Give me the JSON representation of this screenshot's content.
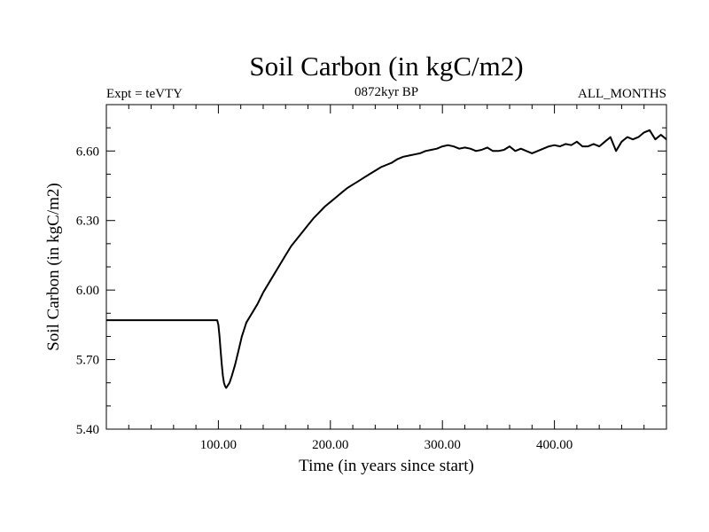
{
  "chart_data": {
    "type": "line",
    "title": "Soil Carbon (in kgC/m2)",
    "subtitle_left": "Expt = teVTY",
    "subtitle_center": "0872kyr BP",
    "subtitle_right": "ALL_MONTHS",
    "xlabel": "Time (in years since start)",
    "ylabel": "Soil Carbon (in kgC/m2)",
    "xlim": [
      0,
      500
    ],
    "ylim": [
      5.4,
      6.8
    ],
    "x_ticks": [
      100,
      200,
      300,
      400
    ],
    "x_tick_labels": [
      "100.00",
      "200.00",
      "300.00",
      "400.00"
    ],
    "y_ticks": [
      5.4,
      5.7,
      6.0,
      6.3,
      6.6
    ],
    "y_tick_labels": [
      "5.40",
      "5.70",
      "6.00",
      "6.30",
      "6.60"
    ],
    "line_color": "#000000",
    "series": [
      {
        "name": "Soil Carbon",
        "x": [
          0,
          99,
          100,
          101,
          102,
          103,
          104,
          105,
          106,
          107,
          108,
          110,
          112,
          115,
          118,
          121,
          125,
          130,
          135,
          140,
          145,
          150,
          155,
          160,
          165,
          170,
          175,
          180,
          185,
          190,
          195,
          200,
          205,
          210,
          215,
          220,
          225,
          230,
          235,
          240,
          245,
          250,
          255,
          260,
          265,
          270,
          275,
          280,
          285,
          290,
          295,
          300,
          305,
          310,
          315,
          320,
          325,
          330,
          335,
          340,
          345,
          350,
          355,
          360,
          365,
          370,
          375,
          380,
          385,
          390,
          395,
          400,
          405,
          410,
          415,
          420,
          425,
          430,
          435,
          440,
          445,
          450,
          455,
          460,
          465,
          470,
          475,
          480,
          485,
          490,
          495,
          500
        ],
        "y": [
          5.87,
          5.87,
          5.85,
          5.8,
          5.74,
          5.68,
          5.63,
          5.6,
          5.585,
          5.578,
          5.585,
          5.6,
          5.63,
          5.68,
          5.74,
          5.8,
          5.86,
          5.9,
          5.94,
          5.99,
          6.03,
          6.07,
          6.11,
          6.15,
          6.19,
          6.22,
          6.25,
          6.28,
          6.31,
          6.335,
          6.36,
          6.38,
          6.4,
          6.42,
          6.44,
          6.455,
          6.47,
          6.485,
          6.5,
          6.515,
          6.53,
          6.54,
          6.55,
          6.565,
          6.575,
          6.58,
          6.585,
          6.59,
          6.6,
          6.605,
          6.61,
          6.62,
          6.625,
          6.62,
          6.61,
          6.615,
          6.61,
          6.6,
          6.605,
          6.615,
          6.6,
          6.6,
          6.605,
          6.62,
          6.6,
          6.61,
          6.6,
          6.59,
          6.6,
          6.61,
          6.62,
          6.625,
          6.62,
          6.63,
          6.625,
          6.64,
          6.62,
          6.62,
          6.63,
          6.62,
          6.64,
          6.66,
          6.6,
          6.64,
          6.66,
          6.65,
          6.66,
          6.68,
          6.69,
          6.65,
          6.67,
          6.65
        ]
      }
    ]
  }
}
